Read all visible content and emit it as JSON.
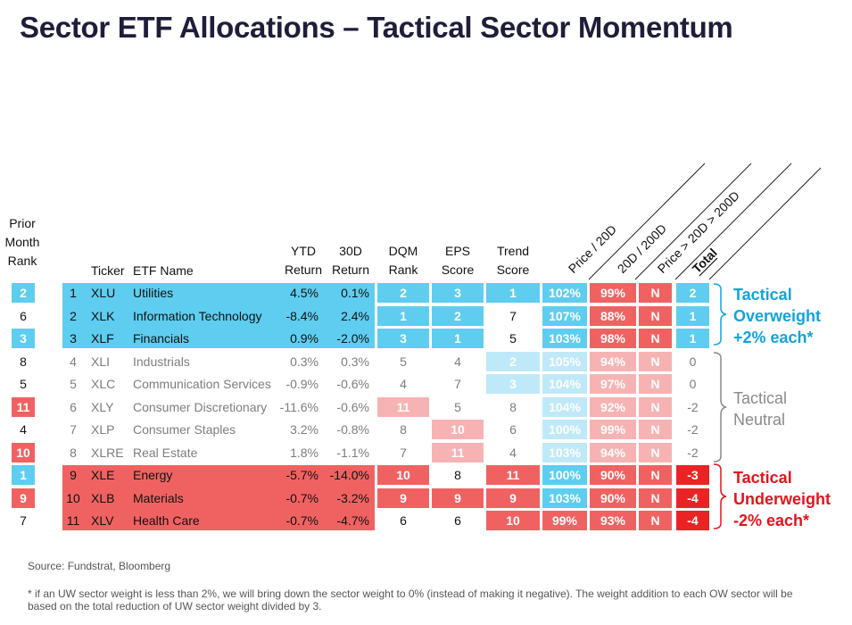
{
  "title": "Sector ETF Allocations – Tactical Sector Momentum",
  "headers": {
    "prior_month_rank": [
      "Prior",
      "Month",
      "Rank"
    ],
    "ticker": "Ticker",
    "etf_name": "ETF Name",
    "ytd_return": [
      "YTD",
      "Return"
    ],
    "d30_return": [
      "30D",
      "Return"
    ],
    "dqm_rank": [
      "DQM",
      "Rank"
    ],
    "eps_score": [
      "EPS",
      "Score"
    ],
    "trend_score": [
      "Trend",
      "Score"
    ],
    "price_20d": "Price / 20D",
    "d20_200d": "20D / 200D",
    "price_gt": "Price > 20D > 200D",
    "total": "Total"
  },
  "colors": {
    "ow_blue": "#5ecdf0",
    "ow_light": "#bfe9f8",
    "uw_red": "#f06262",
    "uw_light": "#f7b3b3",
    "strong_red": "#ea2424",
    "total_blue": "#109ee0",
    "text_blue": "#13a3de",
    "text_red": "#e2141c"
  },
  "rows": [
    {
      "prior": "2",
      "prior_style": "blue",
      "rank": "1",
      "ticker": "XLU",
      "name": "Utilities",
      "ytd": "4.5%",
      "d30": "0.1%",
      "dqm": "2",
      "dqm_style": "blue",
      "eps": "3",
      "eps_style": "blue",
      "trend": "1",
      "trend_style": "blue",
      "p20": "102%",
      "p20_style": "blue",
      "d200": "99%",
      "d200_style": "red",
      "pgt": "N",
      "pgt_style": "red",
      "total": "2",
      "total_style": "blue",
      "group": "ow"
    },
    {
      "prior": "6",
      "prior_style": "plain",
      "rank": "2",
      "ticker": "XLK",
      "name": "Information Technology",
      "ytd": "-8.4%",
      "d30": "2.4%",
      "dqm": "1",
      "dqm_style": "blue",
      "eps": "2",
      "eps_style": "blue",
      "trend": "7",
      "trend_style": "plain",
      "p20": "107%",
      "p20_style": "blue",
      "d200": "88%",
      "d200_style": "red",
      "pgt": "N",
      "pgt_style": "red",
      "total": "1",
      "total_style": "blue",
      "group": "ow"
    },
    {
      "prior": "3",
      "prior_style": "blue",
      "rank": "3",
      "ticker": "XLF",
      "name": "Financials",
      "ytd": "0.9%",
      "d30": "-2.0%",
      "dqm": "3",
      "dqm_style": "blue",
      "eps": "1",
      "eps_style": "blue",
      "trend": "5",
      "trend_style": "plain",
      "p20": "103%",
      "p20_style": "blue",
      "d200": "98%",
      "d200_style": "red",
      "pgt": "N",
      "pgt_style": "red",
      "total": "1",
      "total_style": "blue",
      "group": "ow"
    },
    {
      "prior": "8",
      "prior_style": "plain",
      "rank": "4",
      "ticker": "XLI",
      "name": "Industrials",
      "ytd": "0.3%",
      "d30": "0.3%",
      "dqm": "5",
      "dqm_style": "plain",
      "eps": "4",
      "eps_style": "plain",
      "trend": "2",
      "trend_style": "lightblue",
      "p20": "105%",
      "p20_style": "lightblue",
      "d200": "94%",
      "d200_style": "lightred",
      "pgt": "N",
      "pgt_style": "lightred",
      "total": "0",
      "total_style": "plain",
      "group": "n"
    },
    {
      "prior": "5",
      "prior_style": "plain",
      "rank": "5",
      "ticker": "XLC",
      "name": "Communication Services",
      "ytd": "-0.9%",
      "d30": "-0.6%",
      "dqm": "4",
      "dqm_style": "plain",
      "eps": "7",
      "eps_style": "plain",
      "trend": "3",
      "trend_style": "lightblue",
      "p20": "104%",
      "p20_style": "lightblue",
      "d200": "97%",
      "d200_style": "lightred",
      "pgt": "N",
      "pgt_style": "lightred",
      "total": "0",
      "total_style": "plain",
      "group": "n"
    },
    {
      "prior": "11",
      "prior_style": "red",
      "rank": "6",
      "ticker": "XLY",
      "name": "Consumer Discretionary",
      "ytd": "-11.6%",
      "d30": "-0.6%",
      "dqm": "11",
      "dqm_style": "lightred",
      "eps": "5",
      "eps_style": "plain",
      "trend": "8",
      "trend_style": "plain",
      "p20": "104%",
      "p20_style": "lightblue",
      "d200": "92%",
      "d200_style": "lightred",
      "pgt": "N",
      "pgt_style": "lightred",
      "total": "-2",
      "total_style": "plain",
      "group": "n"
    },
    {
      "prior": "4",
      "prior_style": "plain",
      "rank": "7",
      "ticker": "XLP",
      "name": "Consumer Staples",
      "ytd": "3.2%",
      "d30": "-0.8%",
      "dqm": "8",
      "dqm_style": "plain",
      "eps": "10",
      "eps_style": "lightred",
      "trend": "6",
      "trend_style": "plain",
      "p20": "100%",
      "p20_style": "lightblue",
      "d200": "99%",
      "d200_style": "lightred",
      "pgt": "N",
      "pgt_style": "lightred",
      "total": "-2",
      "total_style": "plain",
      "group": "n"
    },
    {
      "prior": "10",
      "prior_style": "red",
      "rank": "8",
      "ticker": "XLRE",
      "name": "Real Estate",
      "ytd": "1.8%",
      "d30": "-1.1%",
      "dqm": "7",
      "dqm_style": "plain",
      "eps": "11",
      "eps_style": "lightred",
      "trend": "4",
      "trend_style": "plain",
      "p20": "103%",
      "p20_style": "lightblue",
      "d200": "94%",
      "d200_style": "lightred",
      "pgt": "N",
      "pgt_style": "lightred",
      "total": "-2",
      "total_style": "plain",
      "group": "n"
    },
    {
      "prior": "1",
      "prior_style": "blue",
      "rank": "9",
      "ticker": "XLE",
      "name": "Energy",
      "ytd": "-5.7%",
      "d30": "-14.0%",
      "dqm": "10",
      "dqm_style": "red",
      "eps": "8",
      "eps_style": "plain",
      "trend": "11",
      "trend_style": "red",
      "p20": "100%",
      "p20_style": "blue",
      "d200": "90%",
      "d200_style": "red",
      "pgt": "N",
      "pgt_style": "red",
      "total": "-3",
      "total_style": "strongred",
      "group": "uw"
    },
    {
      "prior": "9",
      "prior_style": "red",
      "rank": "10",
      "ticker": "XLB",
      "name": "Materials",
      "ytd": "-0.7%",
      "d30": "-3.2%",
      "dqm": "9",
      "dqm_style": "red",
      "eps": "9",
      "eps_style": "red",
      "trend": "9",
      "trend_style": "red",
      "p20": "103%",
      "p20_style": "blue",
      "d200": "90%",
      "d200_style": "red",
      "pgt": "N",
      "pgt_style": "red",
      "total": "-4",
      "total_style": "strongred",
      "group": "uw"
    },
    {
      "prior": "7",
      "prior_style": "plain",
      "rank": "11",
      "ticker": "XLV",
      "name": "Health Care",
      "ytd": "-0.7%",
      "d30": "-4.7%",
      "dqm": "6",
      "dqm_style": "plain",
      "eps": "6",
      "eps_style": "plain",
      "trend": "10",
      "trend_style": "red",
      "p20": "99%",
      "p20_style": "red",
      "d200": "93%",
      "d200_style": "red",
      "pgt": "N",
      "pgt_style": "red",
      "total": "-4",
      "total_style": "strongred",
      "group": "uw"
    }
  ],
  "groups": {
    "overweight": [
      "Tactical",
      "Overweight",
      "+2% each*"
    ],
    "neutral": [
      "Tactical",
      "Neutral"
    ],
    "underweight": [
      "Tactical",
      "Underweight",
      "-2% each*"
    ]
  },
  "source": "Source: Fundstrat, Bloomberg",
  "footnote": "* if an UW sector weight is less than 2%, we will bring down the sector weight to 0% (instead of making it negative). The weight addition to each OW sector will be based on the total reduction of UW sector weight divided by 3."
}
